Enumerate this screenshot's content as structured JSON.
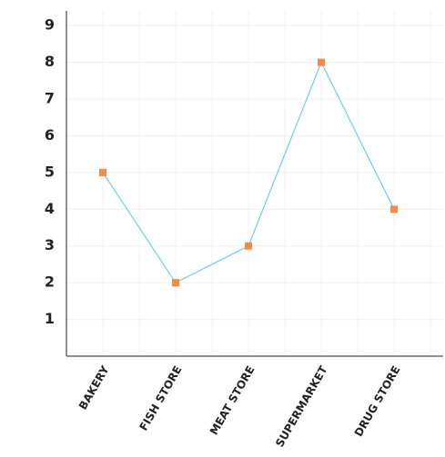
{
  "chart_data": {
    "type": "line",
    "categories": [
      "BAKERY",
      "FISH STORE",
      "MEAT STORE",
      "SUPERMARKET",
      "DRUG STORE"
    ],
    "values": [
      5,
      2,
      3,
      8,
      4
    ],
    "color": "#6ecfe8",
    "marker_color": "#f58a42",
    "ylim": [
      0,
      9.4
    ],
    "yticks": [
      1,
      2,
      3,
      4,
      5,
      6,
      7,
      8,
      9
    ],
    "grid": true
  }
}
